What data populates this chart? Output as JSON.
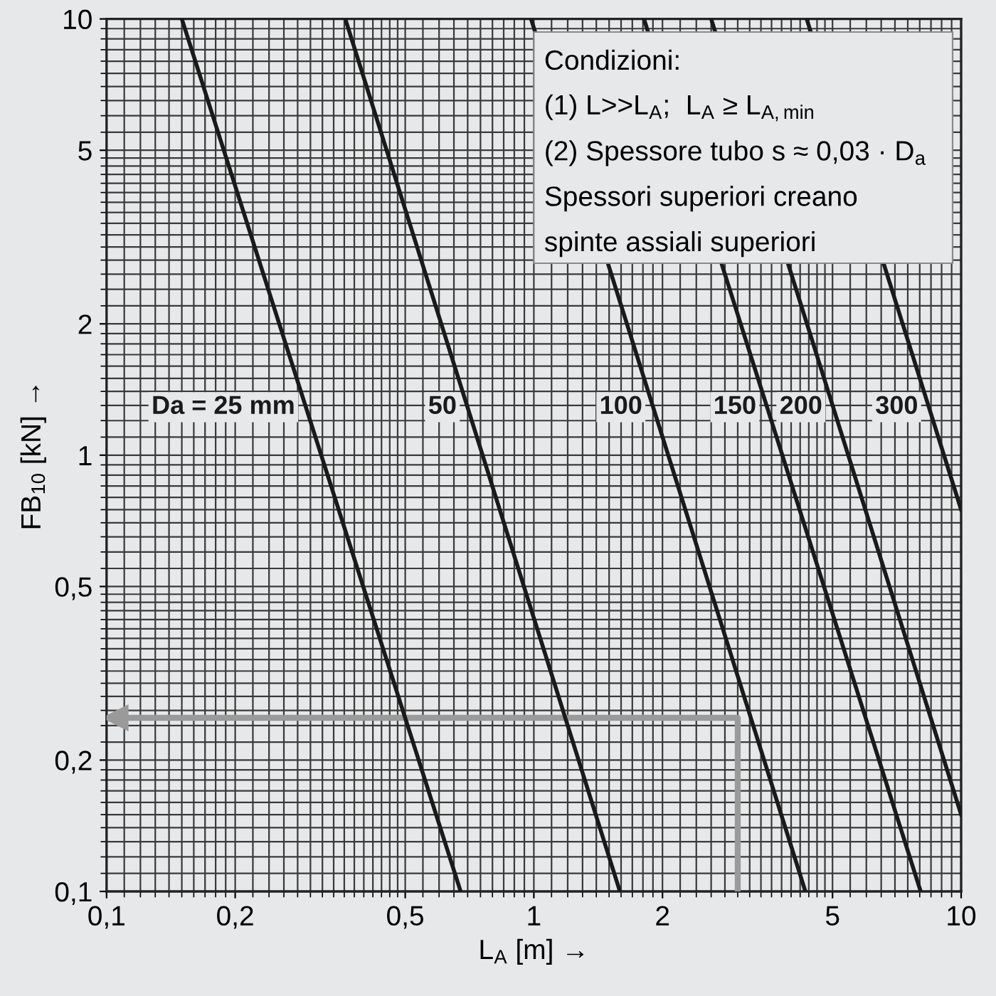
{
  "chart_data": {
    "type": "line",
    "xlabel": "L$_{A}$ [m] →",
    "ylabel": "FB$_{10}$ [kN] →",
    "log": "xy",
    "xlim": [
      0.1,
      10
    ],
    "ylim": [
      0.1,
      10
    ],
    "xticks": [
      {
        "value": 0.1,
        "label": "0,1"
      },
      {
        "value": 0.2,
        "label": "0,2"
      },
      {
        "value": 0.5,
        "label": "0,5"
      },
      1,
      2,
      5,
      10
    ],
    "yticks": [
      {
        "value": 0.1,
        "label": "0,1"
      },
      {
        "value": 0.2,
        "label": "0,2"
      },
      {
        "value": 0.5,
        "label": "0,5"
      },
      1,
      2,
      5,
      10
    ],
    "grid": true,
    "legend": false,
    "marker": "none",
    "line_style": "solid",
    "series": [
      {
        "name": "Da = 25 mm",
        "color": "#1a1a1a",
        "x": [
          0.15,
          0.674
        ],
        "values": [
          10,
          0.1
        ]
      },
      {
        "name": "50",
        "color": "#1a1a1a",
        "x": [
          0.362,
          1.59
        ],
        "values": [
          10,
          0.1
        ]
      },
      {
        "name": "100",
        "color": "#1a1a1a",
        "x": [
          0.985,
          4.32
        ],
        "values": [
          10,
          0.1
        ]
      },
      {
        "name": "150",
        "color": "#1a1a1a",
        "x": [
          1.81,
          8.04
        ],
        "values": [
          10,
          0.1
        ]
      },
      {
        "name": "200",
        "color": "#1a1a1a",
        "x": [
          2.6,
          10
        ],
        "values": [
          10,
          0.15
        ]
      },
      {
        "name": "300",
        "color": "#1a1a1a",
        "x": [
          4.35,
          10
        ],
        "values": [
          10,
          0.75
        ]
      },
      {
        "color": "#9a9a9a",
        "x": [
          3,
          3,
          0.105
        ],
        "values": [
          0.1,
          0.25,
          0.25
        ]
      }
    ],
    "annotations": [
      "Condizioni:",
      "(1) L>>L$_{A}$;  L$_{A}$ ≥ L$_{A,min}$",
      "(2) Spessore tubo s ≈ 0,03 · D$_{a}$",
      "Spessori superiori creano",
      "spinte assiali superiori"
    ]
  }
}
